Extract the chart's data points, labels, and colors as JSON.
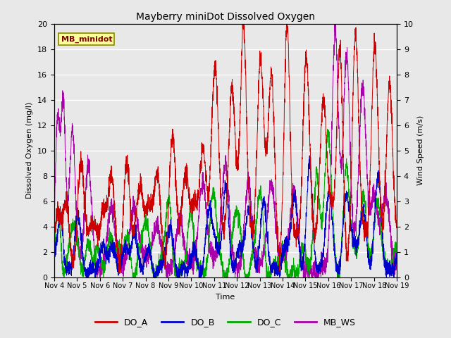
{
  "title": "Mayberry miniDot Dissolved Oxygen",
  "xlabel": "Time",
  "ylabel_left": "Dissolved Oxygen (mg/l)",
  "ylabel_right": "Wind Speed (m/s)",
  "ylim_left": [
    0,
    20
  ],
  "ylim_right": [
    0,
    10
  ],
  "yticks_left": [
    0,
    2,
    4,
    6,
    8,
    10,
    12,
    14,
    16,
    18,
    20
  ],
  "yticks_right": [
    0.0,
    1.0,
    2.0,
    3.0,
    4.0,
    5.0,
    6.0,
    7.0,
    8.0,
    9.0,
    10.0
  ],
  "xtick_labels": [
    "Nov 4",
    "Nov 5",
    "Nov 6",
    "Nov 7",
    "Nov 8",
    "Nov 9",
    "Nov 10",
    "Nov 11",
    "Nov 12",
    "Nov 13",
    "Nov 14",
    "Nov 15",
    "Nov 16",
    "Nov 17",
    "Nov 18",
    "Nov 19"
  ],
  "colors": {
    "DO_A": "#cc0000",
    "DO_B": "#0000cc",
    "DO_C": "#00aa00",
    "MB_WS": "#aa00aa"
  },
  "legend_label": "MB_minidot",
  "background_color": "#e8e8e8",
  "plot_bg_color": "#e8e8e8",
  "grid_color": "#ffffff",
  "annotation_box_color": "#ffff99",
  "annotation_text_color": "#800000"
}
